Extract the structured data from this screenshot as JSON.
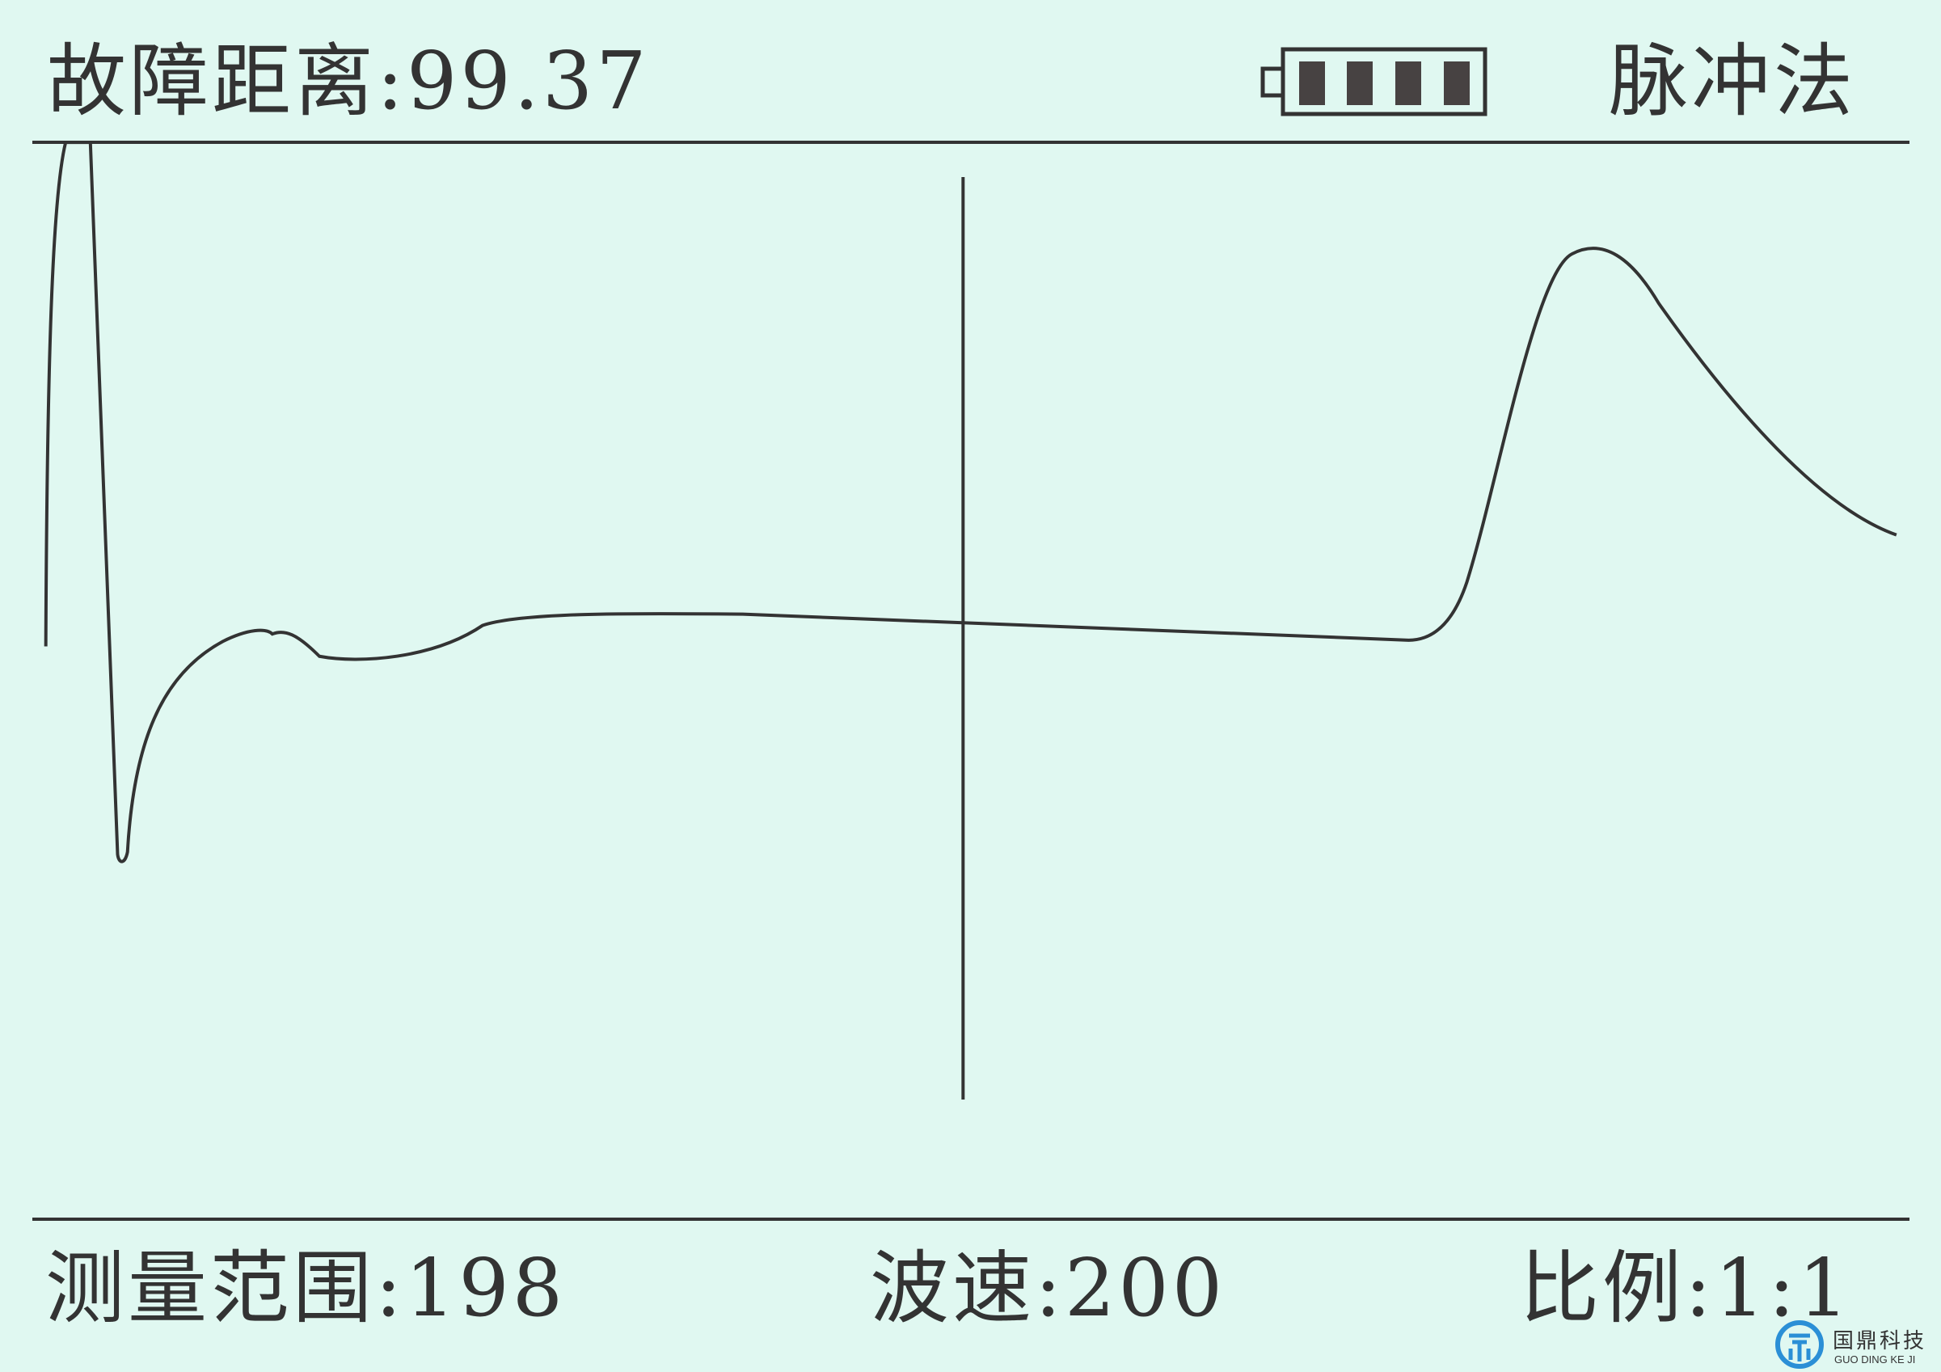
{
  "header": {
    "fault_distance_label": "故障距离:99.37",
    "battery_level": 4,
    "battery_max": 4,
    "mode": "脉冲法"
  },
  "footer": {
    "range_label": "测量范围:198",
    "velocity_label": "波速:200",
    "ratio_label": "比例:1:1"
  },
  "logo": {
    "name_cn": "国鼎科技",
    "name_en": "GUO DING KE JI",
    "color": "#2b8fd6"
  },
  "colors": {
    "background": "#e0f8f1",
    "foreground": "#333333"
  }
}
